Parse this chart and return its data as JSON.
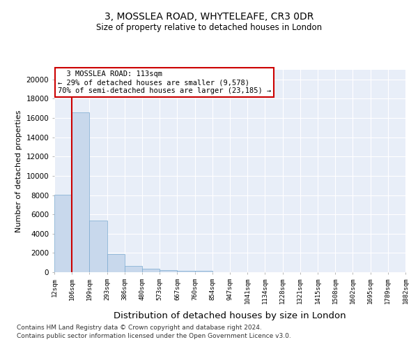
{
  "title": "3, MOSSLEA ROAD, WHYTELEAFE, CR3 0DR",
  "subtitle": "Size of property relative to detached houses in London",
  "xlabel": "Distribution of detached houses by size in London",
  "ylabel": "Number of detached properties",
  "bar_color": "#c8d8ec",
  "bar_edge_color": "#7aaad0",
  "background_color": "#e8eef8",
  "grid_color": "#ffffff",
  "ylim": [
    0,
    21000
  ],
  "yticks": [
    0,
    2000,
    4000,
    6000,
    8000,
    10000,
    12000,
    14000,
    16000,
    18000,
    20000
  ],
  "bin_labels": [
    "12sqm",
    "106sqm",
    "199sqm",
    "293sqm",
    "386sqm",
    "480sqm",
    "573sqm",
    "667sqm",
    "760sqm",
    "854sqm",
    "947sqm",
    "1041sqm",
    "1134sqm",
    "1228sqm",
    "1321sqm",
    "1415sqm",
    "1508sqm",
    "1602sqm",
    "1695sqm",
    "1789sqm",
    "1882sqm"
  ],
  "bar_heights": [
    8050,
    16600,
    5350,
    1900,
    680,
    340,
    220,
    180,
    150,
    0,
    0,
    0,
    0,
    0,
    0,
    0,
    0,
    0,
    0,
    0
  ],
  "annotation_line1": "3 MOSSLEA ROAD: 113sqm",
  "annotation_line2": "← 29% of detached houses are smaller (9,578)",
  "annotation_line3": "70% of semi-detached houses are larger (23,185) →",
  "annotation_box_color": "#ffffff",
  "annotation_box_edge": "#cc0000",
  "red_line_color": "#cc0000",
  "footer1": "Contains HM Land Registry data © Crown copyright and database right 2024.",
  "footer2": "Contains public sector information licensed under the Open Government Licence v3.0."
}
